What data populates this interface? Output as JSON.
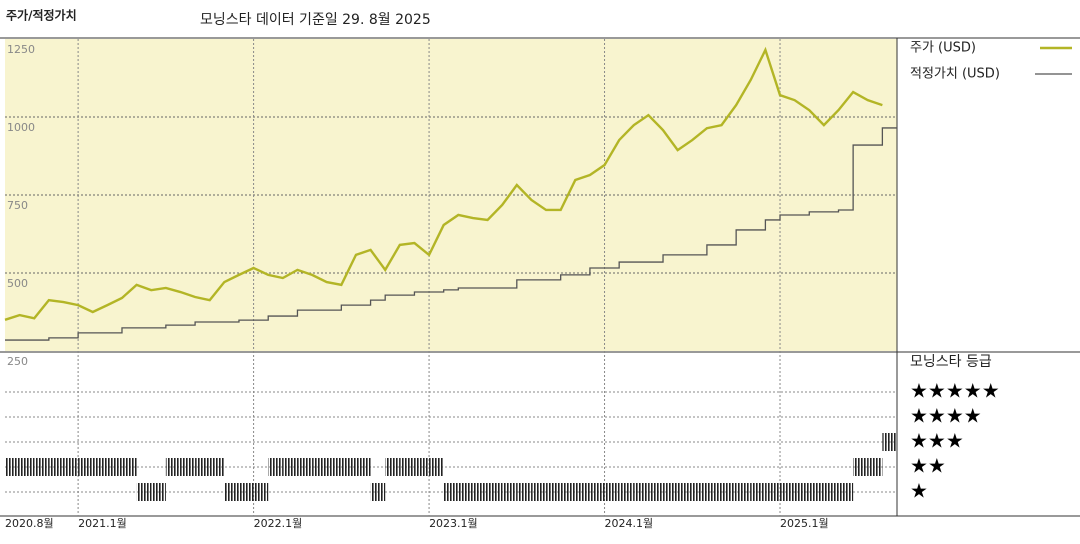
{
  "chart_data": {
    "type": "line",
    "title": "주가/적정가치",
    "subtitle": "모닝스타 데이터 기준일 29. 8월 2025",
    "x": [
      "2020-08",
      "2020-09",
      "2020-10",
      "2020-11",
      "2020-12",
      "2021-01",
      "2021-02",
      "2021-03",
      "2021-04",
      "2021-05",
      "2021-06",
      "2021-07",
      "2021-08",
      "2021-09",
      "2021-10",
      "2021-11",
      "2021-12",
      "2022-01",
      "2022-02",
      "2022-03",
      "2022-04",
      "2022-05",
      "2022-06",
      "2022-07",
      "2022-08",
      "2022-09",
      "2022-10",
      "2022-11",
      "2022-12",
      "2023-01",
      "2023-02",
      "2023-03",
      "2023-04",
      "2023-05",
      "2023-06",
      "2023-07",
      "2023-08",
      "2023-09",
      "2023-10",
      "2023-11",
      "2023-12",
      "2024-01",
      "2024-02",
      "2024-03",
      "2024-04",
      "2024-05",
      "2024-06",
      "2024-07",
      "2024-08",
      "2024-09",
      "2024-10",
      "2024-11",
      "2024-12",
      "2025-01",
      "2025-02",
      "2025-03",
      "2025-04",
      "2025-05",
      "2025-06",
      "2025-07",
      "2025-08"
    ],
    "series": [
      {
        "name": "주가 (USD)",
        "color": "#b3b526",
        "step": false,
        "values": [
          350,
          365,
          355,
          413,
          407,
          397,
          375,
          397,
          420,
          462,
          445,
          452,
          439,
          423,
          413,
          471,
          494,
          516,
          494,
          484,
          510,
          494,
          471,
          462,
          558,
          574,
          510,
          590,
          596,
          558,
          654,
          686,
          676,
          670,
          718,
          782,
          734,
          702,
          702,
          798,
          814,
          846,
          926,
          974,
          1006,
          958,
          894,
          926,
          964,
          974,
          1038,
          1119,
          1215,
          1070,
          1054,
          1022,
          974,
          1022,
          1080,
          1054,
          1038
        ]
      },
      {
        "name": "적정가치 (USD)",
        "color": "#555555",
        "step": true,
        "values": [
          285,
          285,
          285,
          292,
          292,
          308,
          308,
          308,
          324,
          324,
          324,
          333,
          333,
          343,
          343,
          343,
          349,
          349,
          362,
          362,
          381,
          381,
          381,
          397,
          397,
          413,
          429,
          429,
          439,
          439,
          446,
          452,
          452,
          452,
          452,
          478,
          478,
          478,
          494,
          494,
          516,
          516,
          535,
          535,
          535,
          558,
          558,
          558,
          590,
          590,
          638,
          638,
          670,
          686,
          686,
          696,
          696,
          702,
          910,
          910,
          965
        ]
      }
    ],
    "ylim": [
      250,
      1250
    ],
    "yticks": [
      250,
      500,
      750,
      1000,
      1250
    ],
    "xlim": [
      "2020-08",
      "2025-09"
    ],
    "xticks": [
      {
        "value": "2020-08",
        "label": "2020.8월"
      },
      {
        "value": "2021-01",
        "label": "2021.1월"
      },
      {
        "value": "2022-01",
        "label": "2022.1월"
      },
      {
        "value": "2023-01",
        "label": "2023.1월"
      },
      {
        "value": "2024-01",
        "label": "2024.1월"
      },
      {
        "value": "2025-01",
        "label": "2025.1월"
      }
    ],
    "grid": true,
    "rating_title": "모닝스타 등급",
    "rating_labels": [
      "★★★★★",
      "★★★★",
      "★★★",
      "★★",
      "★"
    ],
    "rating_levels": [
      5,
      4,
      3,
      2,
      1
    ],
    "ratings": [
      2,
      2,
      2,
      2,
      2,
      2,
      2,
      2,
      2,
      1,
      1,
      2,
      2,
      2,
      2,
      1,
      1,
      1,
      2,
      2,
      2,
      2,
      2,
      2,
      2,
      1,
      2,
      2,
      2,
      2,
      1,
      1,
      1,
      1,
      1,
      1,
      1,
      1,
      1,
      1,
      1,
      1,
      1,
      1,
      1,
      1,
      1,
      1,
      1,
      1,
      1,
      1,
      1,
      1,
      1,
      1,
      1,
      1,
      2,
      2,
      3
    ]
  }
}
